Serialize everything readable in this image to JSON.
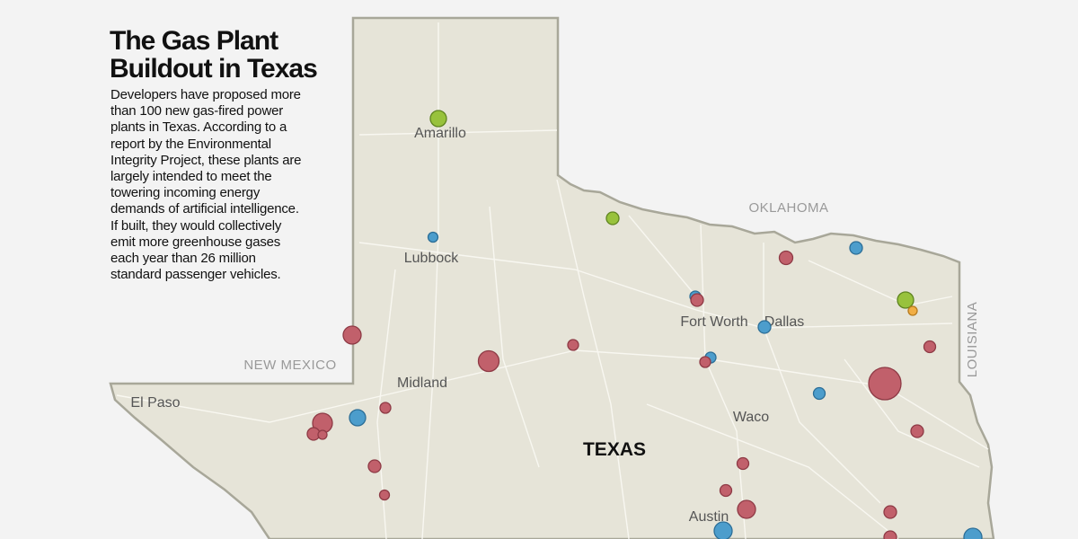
{
  "header": {
    "title_lines": [
      "The Gas Plant",
      "Buildout in Texas"
    ],
    "description_lines": [
      "Developers have proposed more",
      "than 100 new gas-fired power",
      "plants in Texas. According to a",
      "report by the Environmental",
      "Integrity Project, these plants are",
      "largely intended to meet the",
      "towering incoming energy",
      "demands of artificial intelligence.",
      "If built, they would collectively",
      "emit more greenhouse gases",
      "each year than 26 million",
      "standard passenger vehicles."
    ]
  },
  "map": {
    "state_label": "TEXAS",
    "neighbors": [
      "OKLAHOMA",
      "NEW MEXICO",
      "LOUISIANA"
    ],
    "cities": [
      "Amarillo",
      "Lubbock",
      "Fort Worth",
      "Dallas",
      "Midland",
      "El Paso",
      "Waco",
      "Austin"
    ]
  }
}
